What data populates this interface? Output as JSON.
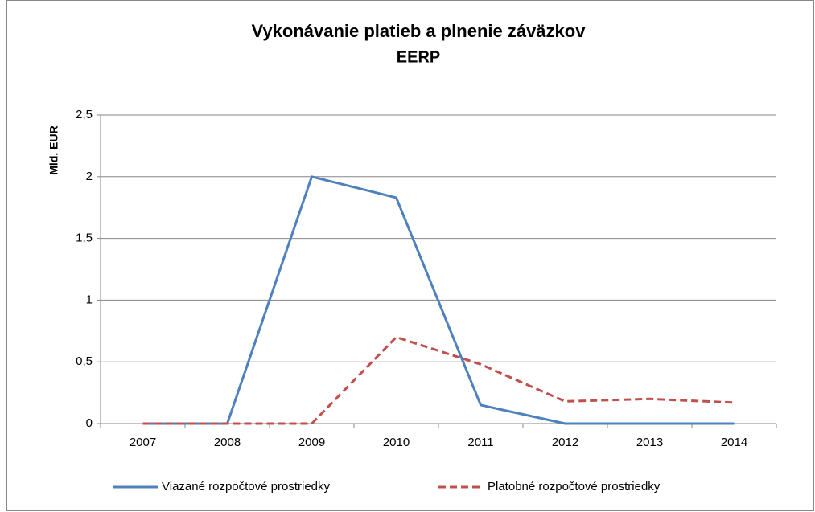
{
  "chart_data": {
    "type": "line",
    "title": "Vykonávanie platieb a plnenie záväzkov",
    "subtitle": "EERP",
    "y_label": "Mld. EUR",
    "categories": [
      "2007",
      "2008",
      "2009",
      "2010",
      "2011",
      "2012",
      "2013",
      "2014"
    ],
    "series": [
      {
        "name": "Viazané rozpočtové prostriedky",
        "color": "#4f81bd",
        "dash": false,
        "values": [
          0,
          0,
          2.0,
          1.83,
          0.15,
          0,
          0,
          0
        ]
      },
      {
        "name": "Platobné rozpočtové prostriedky",
        "color": "#c0504d",
        "dash": true,
        "values": [
          0,
          0,
          0,
          0.7,
          0.48,
          0.18,
          0.2,
          0.17
        ]
      }
    ],
    "ylim": [
      0,
      2.5
    ],
    "yticks": [
      0,
      {
        "value": 0.5,
        "label": "0,5"
      },
      1,
      {
        "value": 1.5,
        "label": "1,5"
      },
      2,
      {
        "value": 2.5,
        "label": "2,5"
      }
    ],
    "grid": true,
    "legend": "bottom"
  }
}
